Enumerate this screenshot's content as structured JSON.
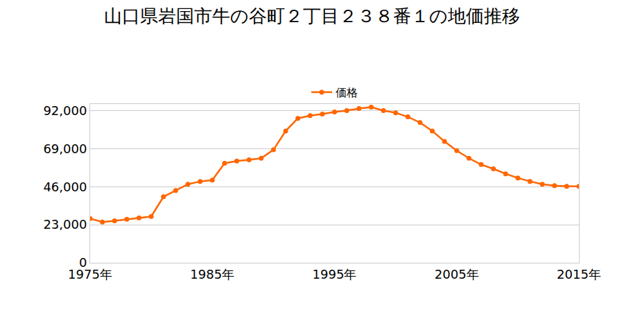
{
  "chart_data": {
    "type": "line",
    "title": "山口県岩国市牛の谷町２丁目２３８番１の地価推移",
    "x": [
      1975,
      1976,
      1977,
      1978,
      1979,
      1980,
      1981,
      1982,
      1983,
      1984,
      1985,
      1986,
      1987,
      1988,
      1989,
      1990,
      1991,
      1992,
      1993,
      1994,
      1995,
      1996,
      1997,
      1998,
      1999,
      2000,
      2001,
      2002,
      2003,
      2004,
      2005,
      2006,
      2007,
      2008,
      2009,
      2010,
      2011,
      2012,
      2013,
      2014,
      2015
    ],
    "series": [
      {
        "name": "価格",
        "color": "#ff6600",
        "marker": "circle",
        "values": [
          26700,
          24600,
          25400,
          26300,
          27100,
          28000,
          39900,
          43700,
          47500,
          49200,
          50000,
          60200,
          61500,
          62300,
          63200,
          68300,
          79700,
          87300,
          89000,
          89900,
          91200,
          92000,
          93300,
          94100,
          92000,
          90700,
          88200,
          84800,
          79700,
          73400,
          67800,
          63200,
          59400,
          56800,
          53800,
          51300,
          49200,
          47500,
          46600,
          46200,
          46200
        ]
      }
    ],
    "xlim": [
      1975,
      2015
    ],
    "xticks": [
      {
        "value": 1975,
        "label": "1975年"
      },
      {
        "value": 1985,
        "label": "1985年"
      },
      {
        "value": 1995,
        "label": "1995年"
      },
      {
        "value": 2005,
        "label": "2005年"
      },
      {
        "value": 2015,
        "label": "2015年"
      }
    ],
    "ylim": [
      0,
      96000
    ],
    "yticks": [
      0,
      {
        "value": 23000,
        "label": "23,000"
      },
      {
        "value": 46000,
        "label": "46,000"
      },
      {
        "value": 69000,
        "label": "69,000"
      },
      {
        "value": 92000,
        "label": "92,000"
      }
    ],
    "grid": true,
    "legend": "top"
  }
}
